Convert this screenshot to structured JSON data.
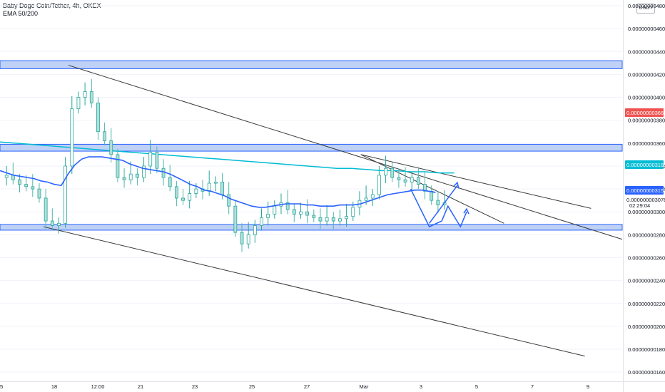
{
  "header": {
    "title": "Baby Doge Coin/Tether, 4h, OKEX",
    "indicator": "EMA 50/200"
  },
  "axis": {
    "currency_label": "USDT",
    "countdown": "02:29:04"
  },
  "colors": {
    "up_candle": "#26a69a",
    "down_candle": "#b2dfdb",
    "ema50": "#2962ff",
    "ema200": "#00bcd4",
    "zone_fill": "#a9c3f2",
    "zone_border": "#2962ff",
    "trendline": "#3a3a3a",
    "projection": "#2962ff"
  },
  "price_tags": [
    {
      "value": "0.000000003664",
      "color": "#ef5350"
    },
    {
      "value": "0.000000003183",
      "color": "#00bcd4"
    },
    {
      "value": "0.000000003151",
      "color": "#2962ff"
    },
    {
      "value": "0.000000003078",
      "color": "#ffffff"
    }
  ],
  "chart_data": {
    "type": "candlestick",
    "title": "Baby Doge Coin/Tether, 4h, OKEX",
    "ylim": [
      1.52e-09,
      4.85e-09
    ],
    "y_ticks": [
      "0.000000004800",
      "0.000000004600",
      "0.000000004400",
      "0.000000004200",
      "0.000000004000",
      "0.000000003800",
      "0.000000003600",
      "0.000000003400",
      "0.000000003200",
      "0.000000003000",
      "0.000000002800",
      "0.000000002600",
      "0.000000002400",
      "0.000000002200",
      "0.000000002000",
      "0.000000001800",
      "0.000000001600"
    ],
    "x_ticks": [
      "5",
      "18",
      "12:00",
      "21",
      "23",
      "25",
      "27",
      "Mar",
      "3",
      "5",
      "7",
      "9"
    ],
    "closes": [
      3.3,
      3.32,
      3.28,
      3.24,
      3.22,
      3.2,
      3.12,
      2.92,
      2.88,
      2.9,
      3.4,
      3.9,
      4.0,
      4.05,
      3.95,
      3.7,
      3.62,
      3.5,
      3.3,
      3.28,
      3.33,
      3.3,
      3.4,
      3.52,
      3.38,
      3.3,
      3.22,
      3.12,
      3.1,
      3.16,
      3.2,
      3.18,
      3.25,
      3.26,
      3.15,
      3.05,
      2.82,
      2.72,
      2.8,
      2.88,
      2.95,
      2.98,
      3.05,
      3.08,
      3.02,
      2.98,
      3.0,
      2.97,
      2.95,
      2.92,
      2.95,
      2.92,
      2.94,
      2.96,
      3.04,
      3.1,
      3.12,
      3.15,
      3.32,
      3.38,
      3.3,
      3.28,
      3.26,
      3.3,
      3.24,
      3.18,
      3.1,
      3.06,
      3.08
    ],
    "ema50": [
      3.36,
      3.34,
      3.32,
      3.31,
      3.3,
      3.29,
      3.27,
      3.26,
      3.24,
      3.23,
      3.33,
      3.41,
      3.46,
      3.48,
      3.48,
      3.48,
      3.47,
      3.46,
      3.45,
      3.42,
      3.4,
      3.38,
      3.37,
      3.36,
      3.35,
      3.33,
      3.3,
      3.27,
      3.24,
      3.22,
      3.19,
      3.18,
      3.16,
      3.14,
      3.11,
      3.09,
      3.07,
      3.05,
      3.04,
      3.04,
      3.05,
      3.06,
      3.07,
      3.07,
      3.07,
      3.06,
      3.06,
      3.05,
      3.05,
      3.05,
      3.06,
      3.06,
      3.06,
      3.07,
      3.09,
      3.11,
      3.13,
      3.15,
      3.16,
      3.17,
      3.18,
      3.19,
      3.19,
      3.18,
      3.17
    ],
    "ema200": [
      3.61,
      3.6,
      3.59,
      3.58,
      3.57,
      3.56,
      3.55,
      3.54,
      3.53,
      3.52,
      3.51,
      3.5,
      3.49,
      3.48,
      3.47,
      3.46,
      3.45,
      3.44,
      3.43,
      3.42,
      3.41,
      3.4,
      3.39,
      3.38,
      3.38,
      3.37,
      3.36,
      3.36,
      3.35,
      3.35,
      3.34,
      3.34
    ],
    "zones": [
      {
        "low": 4.25,
        "high": 4.32
      },
      {
        "low": 3.53,
        "high": 3.59
      },
      {
        "low": 2.84,
        "high": 2.89
      }
    ],
    "trendlines": [
      [
        [
          0.11,
          4.28
        ],
        [
          1.0,
          2.76
        ]
      ],
      [
        [
          0.07,
          2.87
        ],
        [
          0.94,
          1.74
        ]
      ],
      [
        [
          0.58,
          3.5
        ],
        [
          0.81,
          2.9
        ]
      ],
      [
        [
          0.58,
          3.5
        ],
        [
          0.95,
          3.03
        ]
      ]
    ],
    "projection": [
      [
        0.66,
        3.2
      ],
      [
        0.69,
        2.87
      ],
      [
        0.71,
        2.92
      ],
      [
        0.72,
        3.05
      ],
      [
        0.74,
        2.87
      ],
      [
        0.75,
        3.0
      ]
    ]
  }
}
